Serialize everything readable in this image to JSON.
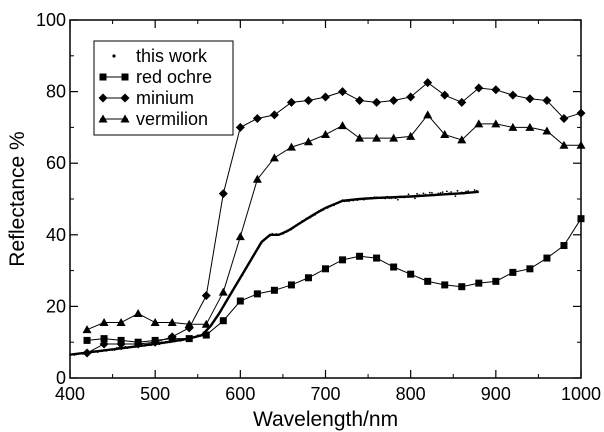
{
  "chart_data": {
    "type": "line",
    "title": "",
    "xlabel": "Wavelength/nm",
    "ylabel": "Reflectance %",
    "xlim": [
      400,
      1000
    ],
    "ylim": [
      0,
      100
    ],
    "x_ticks": [
      400,
      500,
      600,
      700,
      800,
      900,
      1000
    ],
    "y_ticks": [
      0,
      20,
      40,
      60,
      80,
      100
    ],
    "x_tick_labels": [
      "400",
      "500",
      "600",
      "700",
      "800",
      "900",
      "1000"
    ],
    "y_tick_labels": [
      "0",
      "20",
      "40",
      "60",
      "80",
      "100"
    ],
    "grid": false,
    "legend_position": "top-left",
    "series": [
      {
        "name": "this work",
        "marker": "dot",
        "x": [
          400,
          420,
          440,
          460,
          480,
          500,
          520,
          540,
          555,
          565,
          575,
          585,
          595,
          605,
          615,
          625,
          635,
          645,
          655,
          665,
          675,
          685,
          700,
          720,
          740,
          760,
          780,
          800,
          820,
          840,
          860,
          880
        ],
        "y": [
          6.5,
          7.1,
          7.7,
          8.3,
          8.9,
          9.5,
          10.2,
          11.0,
          12.0,
          14.5,
          18.0,
          22.0,
          26.0,
          30.0,
          34.0,
          38.0,
          40.0,
          40.0,
          41.0,
          42.5,
          44.0,
          45.5,
          47.5,
          49.5,
          50.0,
          50.3,
          50.5,
          50.7,
          51.0,
          51.3,
          51.6,
          52.0
        ]
      },
      {
        "name": "red ochre",
        "marker": "square",
        "x": [
          420,
          440,
          460,
          480,
          500,
          520,
          540,
          560,
          580,
          600,
          620,
          640,
          660,
          680,
          700,
          720,
          740,
          760,
          780,
          800,
          820,
          840,
          860,
          880,
          900,
          920,
          940,
          960,
          980,
          1000
        ],
        "y": [
          10.5,
          11.0,
          10.5,
          10.0,
          10.5,
          11.0,
          11.0,
          12.0,
          16.0,
          21.5,
          23.5,
          24.5,
          26.0,
          28.0,
          30.5,
          33.0,
          34.0,
          33.5,
          31.0,
          29.0,
          27.0,
          26.0,
          25.5,
          26.5,
          27.0,
          29.5,
          30.5,
          33.5,
          37.0,
          44.5
        ]
      },
      {
        "name": "minium",
        "marker": "diamond",
        "x": [
          420,
          440,
          460,
          480,
          500,
          520,
          540,
          560,
          580,
          600,
          620,
          640,
          660,
          680,
          700,
          720,
          740,
          760,
          780,
          800,
          820,
          840,
          860,
          880,
          900,
          920,
          940,
          960,
          980,
          1000
        ],
        "y": [
          7.0,
          9.5,
          9.5,
          9.5,
          10.0,
          11.5,
          14.0,
          23.0,
          51.5,
          70.0,
          72.5,
          73.5,
          77.0,
          77.5,
          78.5,
          80.0,
          77.5,
          77.0,
          77.5,
          78.5,
          82.5,
          79.0,
          77.0,
          81.0,
          80.5,
          79.0,
          78.0,
          77.5,
          72.5,
          74.0
        ]
      },
      {
        "name": "vermilion",
        "marker": "triangle",
        "x": [
          420,
          440,
          460,
          480,
          500,
          520,
          540,
          560,
          580,
          600,
          620,
          640,
          660,
          680,
          700,
          720,
          740,
          760,
          780,
          800,
          820,
          840,
          860,
          880,
          900,
          920,
          940,
          960,
          980,
          1000
        ],
        "y": [
          13.5,
          15.5,
          15.5,
          18.0,
          15.5,
          15.5,
          15.0,
          15.0,
          24.0,
          39.5,
          55.5,
          61.5,
          64.5,
          66.0,
          68.0,
          70.5,
          67.0,
          67.0,
          67.0,
          67.5,
          73.5,
          68.0,
          66.5,
          71.0,
          71.0,
          70.0,
          70.0,
          69.0,
          65.0,
          65.0
        ]
      }
    ]
  }
}
